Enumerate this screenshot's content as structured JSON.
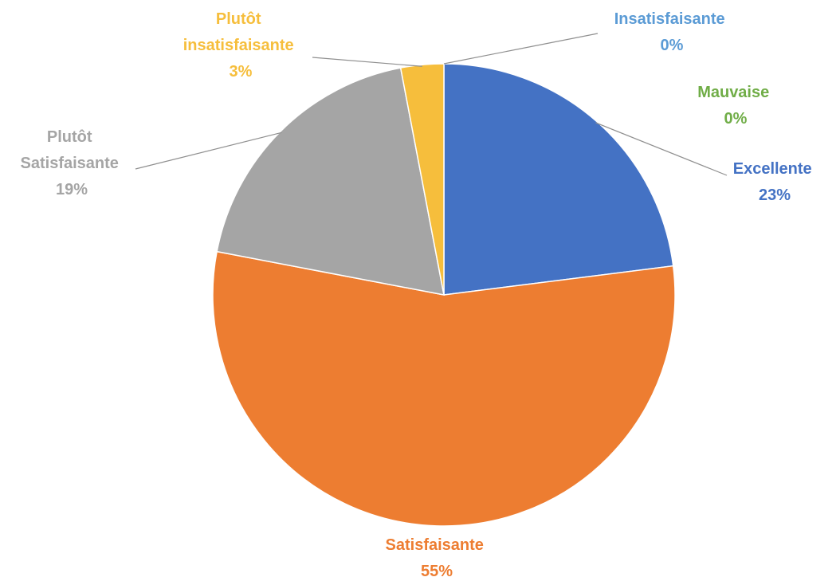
{
  "chart_data": {
    "type": "pie",
    "start_angle_deg": 0,
    "direction": "clockwise",
    "slices": [
      {
        "label": "Excellente",
        "percent_label": "23%",
        "value": 23,
        "color": "#4472C4"
      },
      {
        "label": "Satisfaisante",
        "percent_label": "55%",
        "value": 55,
        "color": "#ED7D31"
      },
      {
        "label": "Plutôt Satisfaisante",
        "percent_label": "19%",
        "value": 19,
        "color": "#A5A5A5"
      },
      {
        "label": "Plutôt insatisfaisante",
        "percent_label": "3%",
        "value": 3,
        "color": "#F6BE3C"
      },
      {
        "label": "Insatisfaisante",
        "percent_label": "0%",
        "value": 0,
        "color": "#5B9BD5"
      },
      {
        "label": "Mauvaise",
        "percent_label": "0%",
        "value": 0,
        "color": "#70AD47"
      }
    ],
    "legend": "none",
    "data_labels": "outside with leader lines"
  }
}
